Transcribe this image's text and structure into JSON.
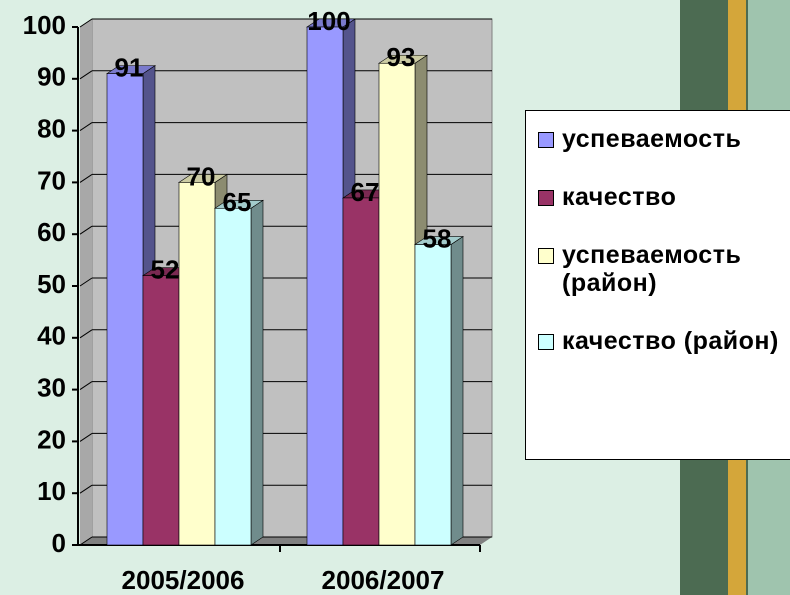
{
  "chart_data": {
    "type": "bar3d",
    "categories": [
      "2005/2006",
      "2006/2007"
    ],
    "series": [
      {
        "name": "успеваемость",
        "color": "#9999ff",
        "values": [
          91,
          100
        ]
      },
      {
        "name": "качество",
        "color": "#993366",
        "values": [
          52,
          67
        ]
      },
      {
        "name": "успеваемость (район)",
        "color": "#ffffcc",
        "values": [
          70,
          93
        ]
      },
      {
        "name": "качество (район)",
        "color": "#ccffff",
        "values": [
          65,
          58
        ]
      }
    ],
    "ylim": [
      0,
      100
    ],
    "yticks": [
      0,
      10,
      20,
      30,
      40,
      50,
      60,
      70,
      80,
      90,
      100
    ],
    "grid": true,
    "legend": "right"
  }
}
